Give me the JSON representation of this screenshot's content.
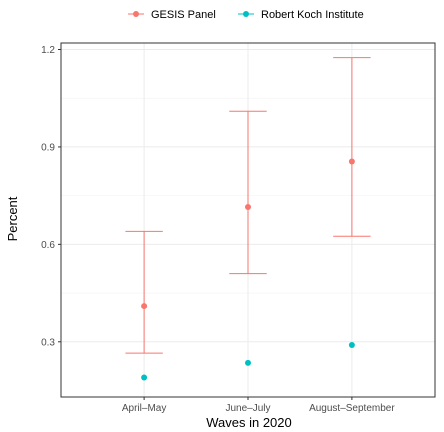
{
  "chart_data": {
    "type": "scatter",
    "categories": [
      "April–May",
      "June–July",
      "August–September"
    ],
    "xlabel": "Waves in 2020",
    "ylabel": "Percent",
    "ylim": [
      0.13,
      1.22
    ],
    "yticks": [
      0.3,
      0.6,
      0.9,
      1.2
    ],
    "yticks_labels": [
      "0.3",
      "0.6",
      "0.9",
      "1.2"
    ],
    "grid": true,
    "legend_position": "top",
    "series": [
      {
        "name": "GESIS Panel",
        "color": "#F8766D",
        "values": [
          0.41,
          0.715,
          0.855
        ],
        "lower": [
          0.265,
          0.51,
          0.625
        ],
        "upper": [
          0.64,
          1.01,
          1.175
        ]
      },
      {
        "name": "Robert Koch Institute",
        "color": "#00BFC4",
        "values": [
          0.19,
          0.235,
          0.29
        ]
      }
    ]
  }
}
